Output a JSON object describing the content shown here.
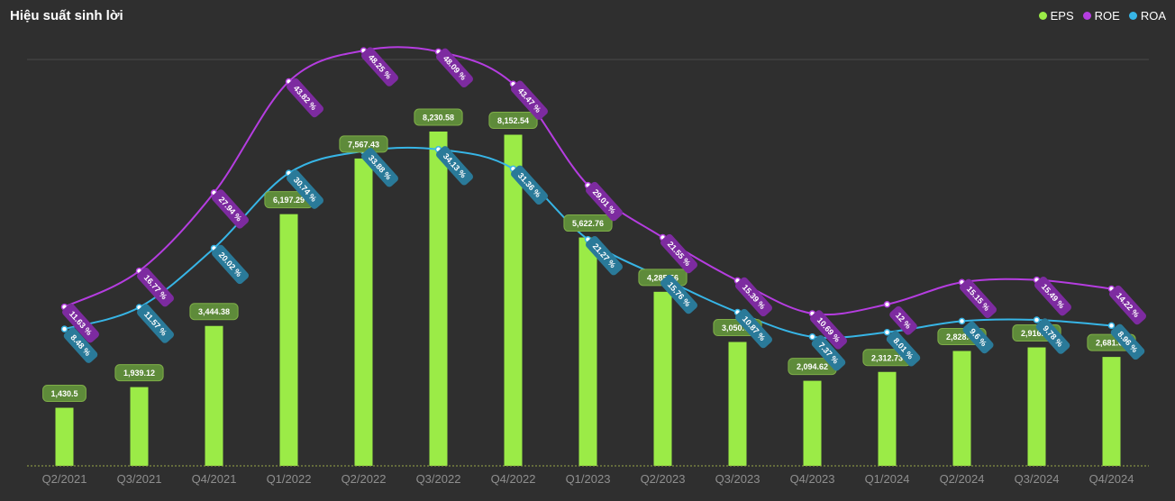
{
  "title": "Hiệu suất sinh lời",
  "legend": [
    {
      "name": "EPS",
      "color": "#9beb47"
    },
    {
      "name": "ROE",
      "color": "#b53de0"
    },
    {
      "name": "ROA",
      "color": "#37b5e6"
    }
  ],
  "chart_data": {
    "type": "bar",
    "categories": [
      "Q2/2021",
      "Q3/2021",
      "Q4/2021",
      "Q1/2022",
      "Q2/2022",
      "Q3/2022",
      "Q4/2022",
      "Q1/2023",
      "Q2/2023",
      "Q3/2023",
      "Q4/2023",
      "Q1/2024",
      "Q2/2024",
      "Q3/2024",
      "Q4/2024"
    ],
    "series": [
      {
        "name": "EPS",
        "type": "bar",
        "color": "#9beb47",
        "values": [
          1430.5,
          1939.12,
          3444.38,
          6197.29,
          7567.43,
          8230.58,
          8152.54,
          5622.76,
          4285.56,
          3050.08,
          2094.62,
          2312.73,
          2828.42,
          2916.56,
          2681.64
        ],
        "labels": [
          "1,430.5",
          "1,939.12",
          "3,444.38",
          "6,197.29",
          "7,567.43",
          "8,230.58",
          "8,152.54",
          "5,622.76",
          "4,285.56",
          "3,050.08",
          "2,094.62",
          "2,312.73",
          "2,828.42",
          "2,916.56",
          "2,681.64"
        ]
      },
      {
        "name": "ROE",
        "type": "line",
        "color": "#b53de0",
        "values": [
          11.63,
          16.77,
          27.94,
          43.82,
          48.25,
          48.09,
          43.47,
          29.01,
          21.55,
          15.39,
          10.69,
          12,
          15.15,
          15.49,
          14.22
        ],
        "labels": [
          "11.63 %",
          "16.77 %",
          "27.94 %",
          "43.82 %",
          "48.25 %",
          "48.09 %",
          "43.47 %",
          "29.01 %",
          "21.55 %",
          "15.39 %",
          "10.69 %",
          "12 %",
          "15.15 %",
          "15.49 %",
          "14.22 %"
        ]
      },
      {
        "name": "ROA",
        "type": "line",
        "color": "#37b5e6",
        "values": [
          8.48,
          11.57,
          20.02,
          30.74,
          33.88,
          34.13,
          31.36,
          21.27,
          15.76,
          10.87,
          7.37,
          8.01,
          9.6,
          9.78,
          8.96
        ],
        "labels": [
          "8.48 %",
          "11.57 %",
          "20.02 %",
          "30.74 %",
          "33.88 %",
          "34.13 %",
          "31.36 %",
          "21.27 %",
          "15.76 %",
          "10.87 %",
          "7.37 %",
          "8.01 %",
          "9.6 %",
          "9.78 %",
          "8.96 %"
        ]
      }
    ],
    "grid": false,
    "legend_position": "top-right"
  }
}
